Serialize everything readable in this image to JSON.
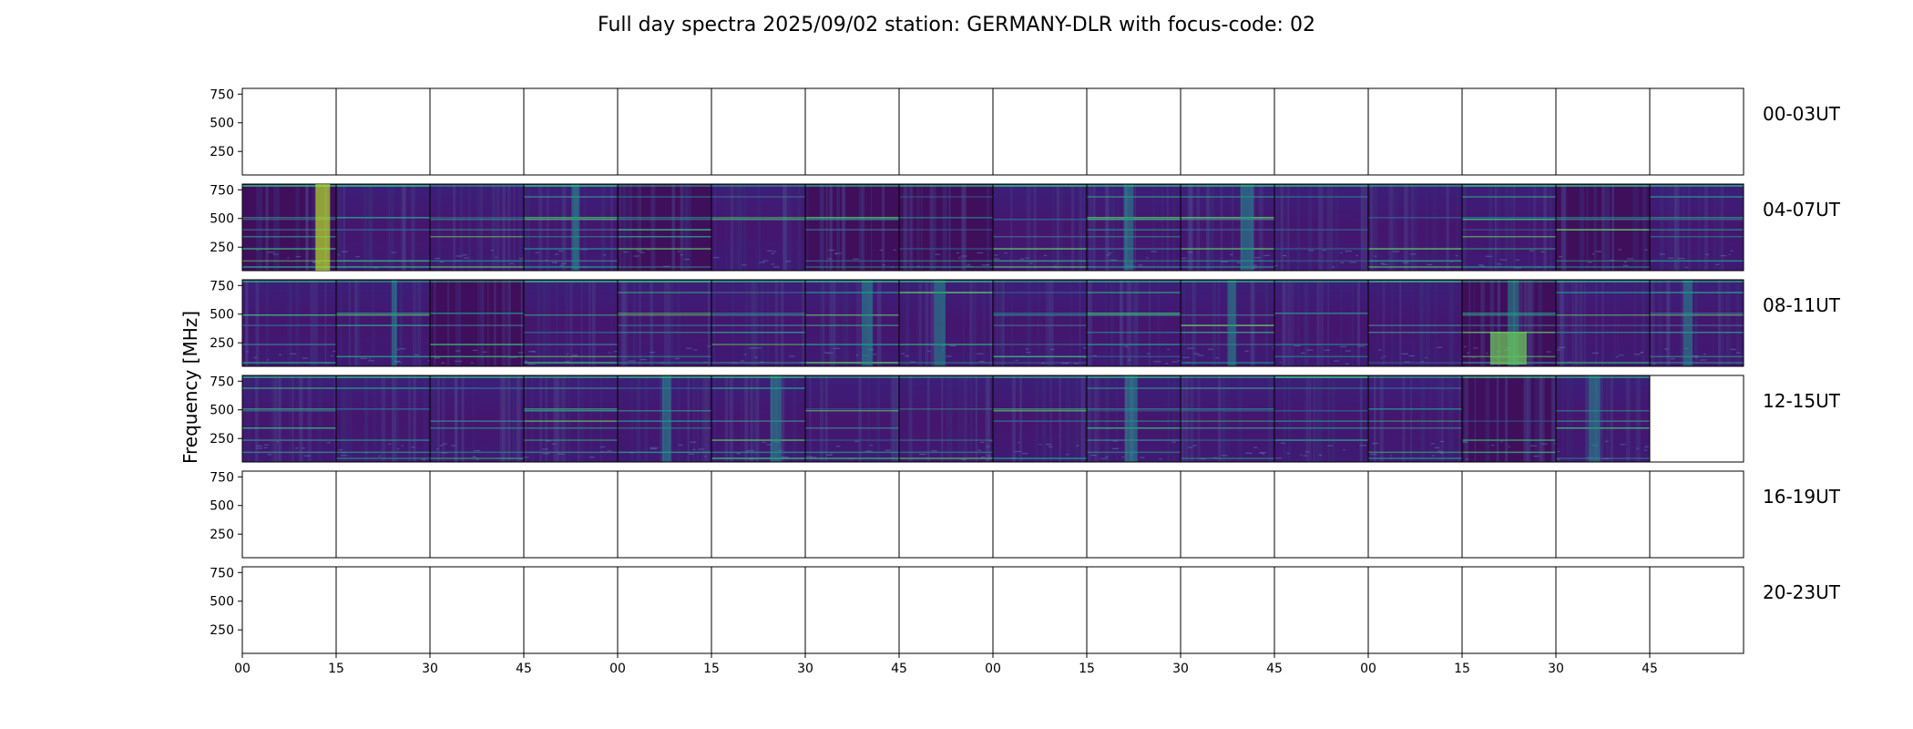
{
  "chart_data": {
    "type": "heatmap",
    "title": "Full day spectra 2025/09/02 station: GERMANY-DLR with focus-code: 02",
    "ylabel": "Frequency [MHz]",
    "xlabel": "",
    "yticks": [
      "750",
      "500",
      "250"
    ],
    "ytick_values": [
      750,
      500,
      250
    ],
    "ylim": [
      45,
      800
    ],
    "xticks": [
      "00",
      "15",
      "30",
      "45",
      "00",
      "15",
      "30",
      "45",
      "00",
      "15",
      "30",
      "45",
      "00",
      "15",
      "30",
      "45"
    ],
    "panels_per_row": 16,
    "grid": false,
    "colormap": "viridis",
    "rows": [
      {
        "label": "00-03UT",
        "has_data": [
          0,
          0,
          0,
          0,
          0,
          0,
          0,
          0,
          0,
          0,
          0,
          0,
          0,
          0,
          0,
          0
        ]
      },
      {
        "label": "04-07UT",
        "has_data": [
          1,
          1,
          1,
          1,
          1,
          1,
          1,
          1,
          1,
          1,
          1,
          1,
          1,
          1,
          1,
          1
        ]
      },
      {
        "label": "08-11UT",
        "has_data": [
          1,
          1,
          1,
          1,
          1,
          1,
          1,
          1,
          1,
          1,
          1,
          1,
          1,
          1,
          1,
          1
        ]
      },
      {
        "label": "12-15UT",
        "has_data": [
          1,
          1,
          1,
          1,
          1,
          1,
          1,
          1,
          1,
          1,
          1,
          1,
          1,
          1,
          1,
          0
        ]
      },
      {
        "label": "16-19UT",
        "has_data": [
          0,
          0,
          0,
          0,
          0,
          0,
          0,
          0,
          0,
          0,
          0,
          0,
          0,
          0,
          0,
          0
        ]
      },
      {
        "label": "20-23UT",
        "has_data": [
          0,
          0,
          0,
          0,
          0,
          0,
          0,
          0,
          0,
          0,
          0,
          0,
          0,
          0,
          0,
          0
        ]
      }
    ]
  }
}
